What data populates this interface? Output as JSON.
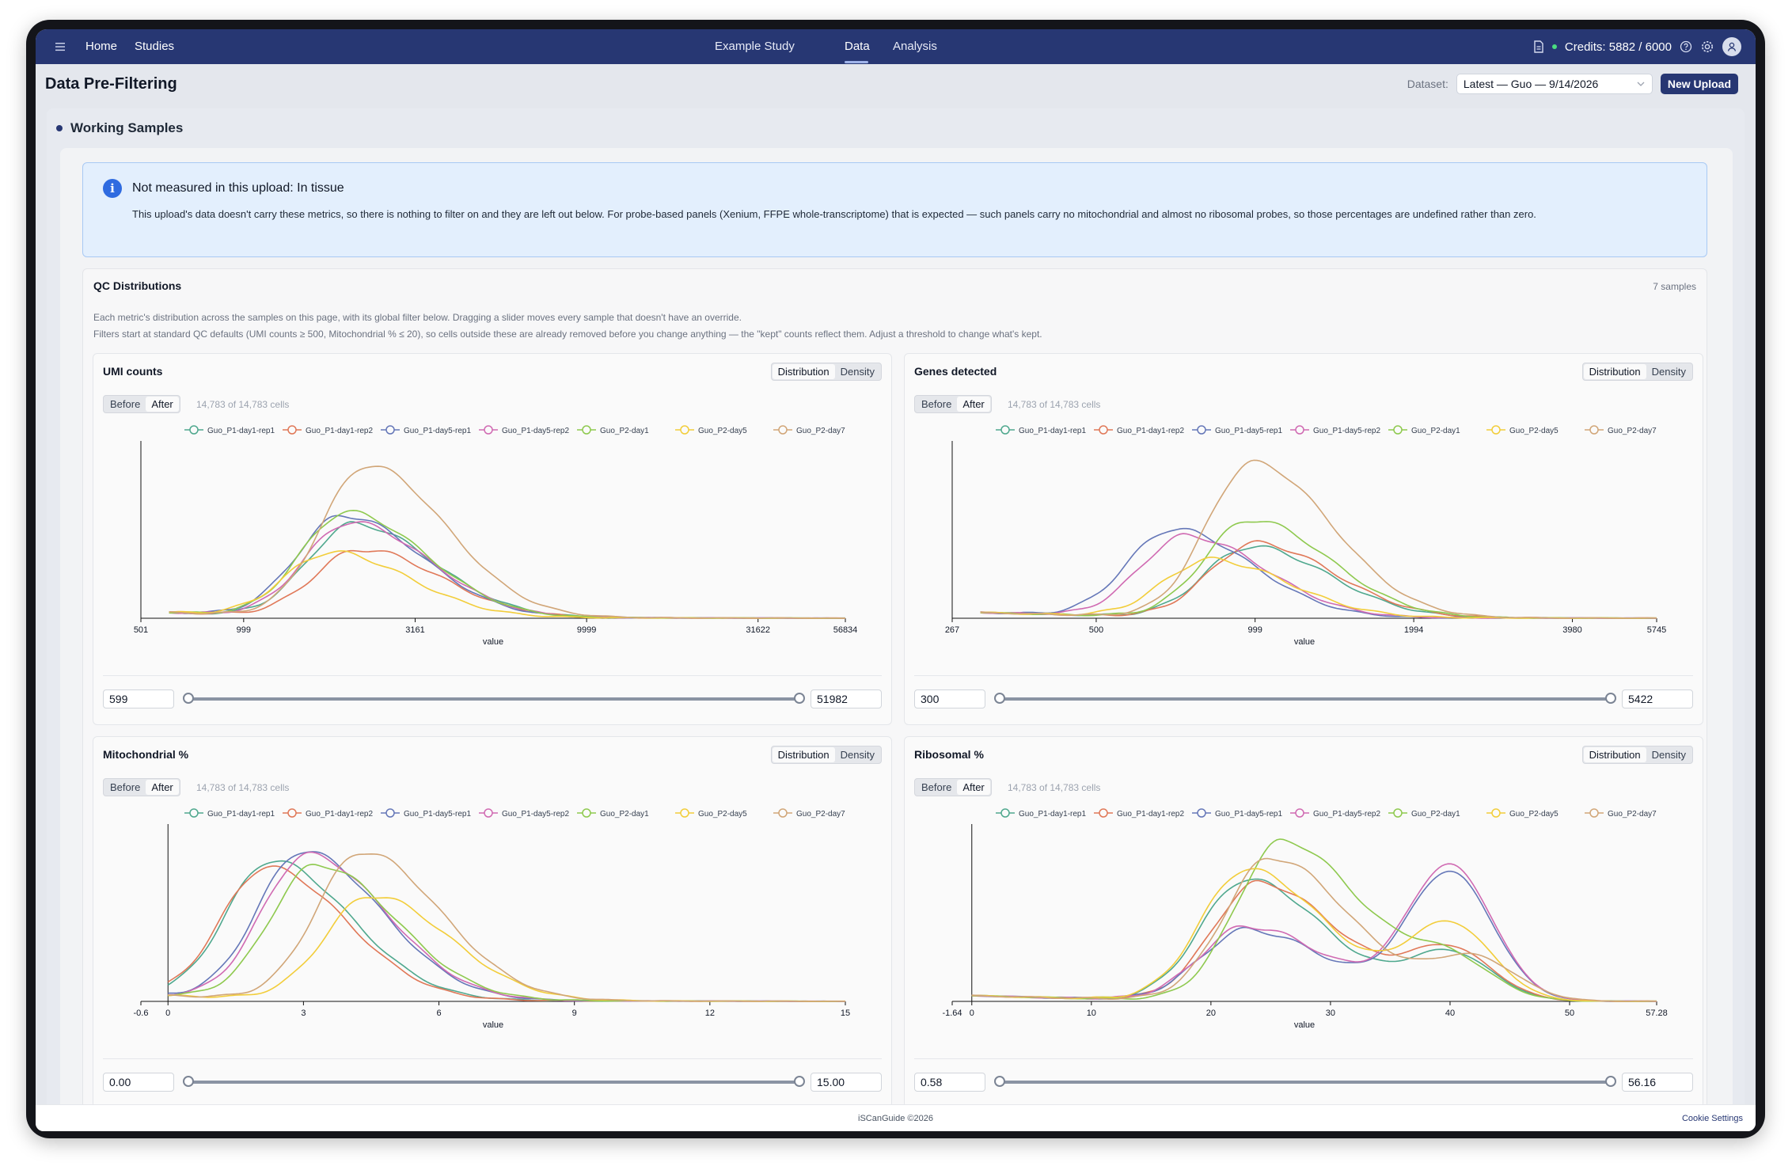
{
  "nav": {
    "home": "Home",
    "studies": "Studies",
    "tabs": [
      "Example Study",
      "Data",
      "Analysis"
    ],
    "active_tab": "Data",
    "credits": "Credits: 5882 / 6000"
  },
  "page": {
    "title": "Data Pre-Filtering",
    "dataset_label": "Dataset:",
    "dataset_value": "Latest — Guo — 9/14/2026",
    "new_upload": "New Upload"
  },
  "working_samples": {
    "title": "Working Samples",
    "alert_title": "Not measured in this upload: In tissue",
    "alert_body": "This upload's data doesn't carry these metrics, so there is nothing to filter on and they are left out below. For probe-based panels (Xenium, FFPE whole-transcriptome) that is expected — such panels carry no mitochondrial and almost no ribosomal probes, so those percentages are undefined rather than zero."
  },
  "qc": {
    "title": "QC Distributions",
    "count": "7 samples",
    "note1": "Each metric's distribution across the samples on this page, with its global filter below. Dragging a slider moves every sample that doesn't have an override.",
    "note2": "Filters start at standard QC defaults (UMI counts ≥ 500, Mitochondrial % ≤ 20), so cells outside these are already removed before you change anything — the \"kept\" counts reflect them. Adjust a threshold to change what's kept.",
    "toggle_distribution": "Distribution",
    "toggle_density": "Density",
    "toggle_before": "Before",
    "toggle_after": "After"
  },
  "chart_data": [
    {
      "type": "line",
      "title": "UMI counts",
      "kept": "14,783 of 14,783 cells",
      "xlabel": "value",
      "x_scale": "log",
      "xlim": [
        501,
        56834
      ],
      "x_ticks": [
        "501",
        "999",
        "3161",
        "9999",
        "31622",
        "56834"
      ],
      "filter_low": "599",
      "filter_high": "51982",
      "series": [
        {
          "name": "Guo_P1-day1-rep1",
          "color": "#4fa88e",
          "peak_x": 2100,
          "peak": 0.55
        },
        {
          "name": "Guo_P1-day1-rep2",
          "color": "#e07858",
          "peak_x": 2200,
          "peak": 0.4
        },
        {
          "name": "Guo_P1-day5-rep1",
          "color": "#6577b8",
          "peak_x": 1950,
          "peak": 0.6
        },
        {
          "name": "Guo_P1-day5-rep2",
          "color": "#d06ab2",
          "peak_x": 2050,
          "peak": 0.56
        },
        {
          "name": "Guo_P2-day1",
          "color": "#8ec94e",
          "peak_x": 2000,
          "peak": 0.62
        },
        {
          "name": "Guo_P2-day5",
          "color": "#f2cd3a",
          "peak_x": 1800,
          "peak": 0.38
        },
        {
          "name": "Guo_P2-day7",
          "color": "#d1a678",
          "peak_x": 2300,
          "peak": 0.9
        }
      ]
    },
    {
      "type": "line",
      "title": "Genes detected",
      "kept": "14,783 of 14,783 cells",
      "xlabel": "value",
      "x_scale": "log",
      "xlim": [
        267,
        5745
      ],
      "x_ticks": [
        "267",
        "500",
        "999",
        "1994",
        "3980",
        "5745"
      ],
      "filter_low": "300",
      "filter_high": "5422",
      "series": [
        {
          "name": "Guo_P1-day1-rep1",
          "color": "#4fa88e",
          "peak_x": 980,
          "peak": 0.42
        },
        {
          "name": "Guo_P1-day1-rep2",
          "color": "#e07858",
          "peak_x": 1000,
          "peak": 0.44
        },
        {
          "name": "Guo_P1-day5-rep1",
          "color": "#6577b8",
          "peak_x": 700,
          "peak": 0.52
        },
        {
          "name": "Guo_P1-day5-rep2",
          "color": "#d06ab2",
          "peak_x": 740,
          "peak": 0.48
        },
        {
          "name": "Guo_P2-day1",
          "color": "#8ec94e",
          "peak_x": 980,
          "peak": 0.58
        },
        {
          "name": "Guo_P2-day5",
          "color": "#f2cd3a",
          "peak_x": 820,
          "peak": 0.34
        },
        {
          "name": "Guo_P2-day7",
          "color": "#d1a678",
          "peak_x": 990,
          "peak": 0.92
        }
      ]
    },
    {
      "type": "line",
      "title": "Mitochondrial %",
      "kept": "14,783 of 14,783 cells",
      "xlabel": "value",
      "xlim": [
        -0.6,
        15
      ],
      "x_ticks": [
        "-0.6",
        "0",
        "3",
        "6",
        "9",
        "12",
        "15"
      ],
      "filter_low": "0.00",
      "filter_high": "15.00",
      "series": [
        {
          "name": "Guo_P1-day1-rep1",
          "color": "#4fa88e",
          "peak_x": 2.3,
          "peak": 0.82
        },
        {
          "name": "Guo_P1-day1-rep2",
          "color": "#e07858",
          "peak_x": 2.2,
          "peak": 0.78
        },
        {
          "name": "Guo_P1-day5-rep1",
          "color": "#6577b8",
          "peak_x": 3.0,
          "peak": 0.88
        },
        {
          "name": "Guo_P1-day5-rep2",
          "color": "#d06ab2",
          "peak_x": 3.1,
          "peak": 0.86
        },
        {
          "name": "Guo_P2-day1",
          "color": "#8ec94e",
          "peak_x": 3.3,
          "peak": 0.8
        },
        {
          "name": "Guo_P2-day5",
          "color": "#f2cd3a",
          "peak_x": 4.5,
          "peak": 0.62
        },
        {
          "name": "Guo_P2-day7",
          "color": "#d1a678",
          "peak_x": 4.3,
          "peak": 0.88
        }
      ]
    },
    {
      "type": "line",
      "title": "Ribosomal %",
      "kept": "14,783 of 14,783 cells",
      "xlabel": "value",
      "xlim": [
        -1.64,
        57.28
      ],
      "x_ticks": [
        "-1.64",
        "0",
        "10",
        "20",
        "30",
        "40",
        "50",
        "57.28"
      ],
      "filter_low": "0.58",
      "filter_high": "56.16",
      "series": [
        {
          "name": "Guo_P1-day1-rep1",
          "color": "#4fa88e",
          "peak_x": 23,
          "peak": 0.72,
          "peak2_x": 40,
          "peak2": 0.28
        },
        {
          "name": "Guo_P1-day1-rep2",
          "color": "#e07858",
          "peak_x": 24,
          "peak": 0.7,
          "peak2_x": 40,
          "peak2": 0.3
        },
        {
          "name": "Guo_P1-day5-rep1",
          "color": "#6577b8",
          "peak_x": 23,
          "peak": 0.42,
          "peak2_x": 40,
          "peak2": 0.76
        },
        {
          "name": "Guo_P1-day5-rep2",
          "color": "#d06ab2",
          "peak_x": 23,
          "peak": 0.44,
          "peak2_x": 40,
          "peak2": 0.8
        },
        {
          "name": "Guo_P2-day1",
          "color": "#8ec94e",
          "peak_x": 26,
          "peak": 0.95,
          "peak2_x": 40,
          "peak2": 0.22
        },
        {
          "name": "Guo_P2-day5",
          "color": "#f2cd3a",
          "peak_x": 23,
          "peak": 0.78,
          "peak2_x": 40,
          "peak2": 0.45
        },
        {
          "name": "Guo_P2-day7",
          "color": "#d1a678",
          "peak_x": 25,
          "peak": 0.85,
          "peak2_x": 42,
          "peak2": 0.25
        }
      ]
    }
  ],
  "footer": {
    "copyright": "iSCanGuide ©2026",
    "cookie": "Cookie Settings"
  }
}
